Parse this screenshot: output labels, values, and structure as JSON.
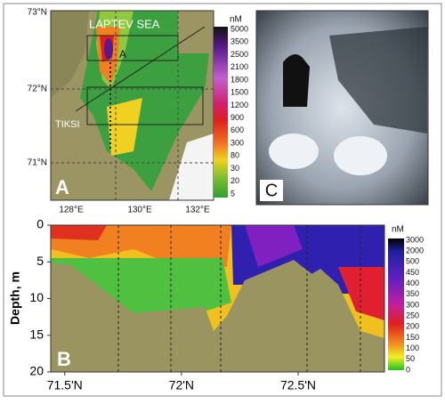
{
  "panel_a": {
    "label": "A",
    "sea": "LAPTEV SEA",
    "station": "A",
    "city": "TIKSI",
    "lat_labels": [
      "73°N",
      "72°N",
      "71°N"
    ],
    "lon_labels": [
      "128°E",
      "130°E",
      "132°E"
    ],
    "colorbar": {
      "unit": "nM",
      "labels": [
        5000,
        3500,
        2500,
        2100,
        1800,
        1500,
        1200,
        900,
        600,
        300,
        80,
        30,
        20,
        5
      ]
    }
  },
  "panel_c": {
    "label": "C"
  },
  "panel_b": {
    "label": "B",
    "ylabel": "Depth, m",
    "ylim": [
      0,
      20
    ],
    "yticks": [
      0,
      5,
      10,
      15,
      20
    ],
    "xlim": [
      71.44,
      72.87
    ],
    "xticks": [
      {
        "value": 71.5,
        "label": "71.5'N"
      },
      {
        "value": 72,
        "label": "72'N"
      },
      {
        "value": 72.5,
        "label": "72.5'N"
      }
    ],
    "colorbar": {
      "unit": "nM",
      "labels": [
        3000,
        2000,
        500,
        450,
        400,
        350,
        300,
        250,
        200,
        150,
        100,
        50,
        0
      ]
    }
  }
}
